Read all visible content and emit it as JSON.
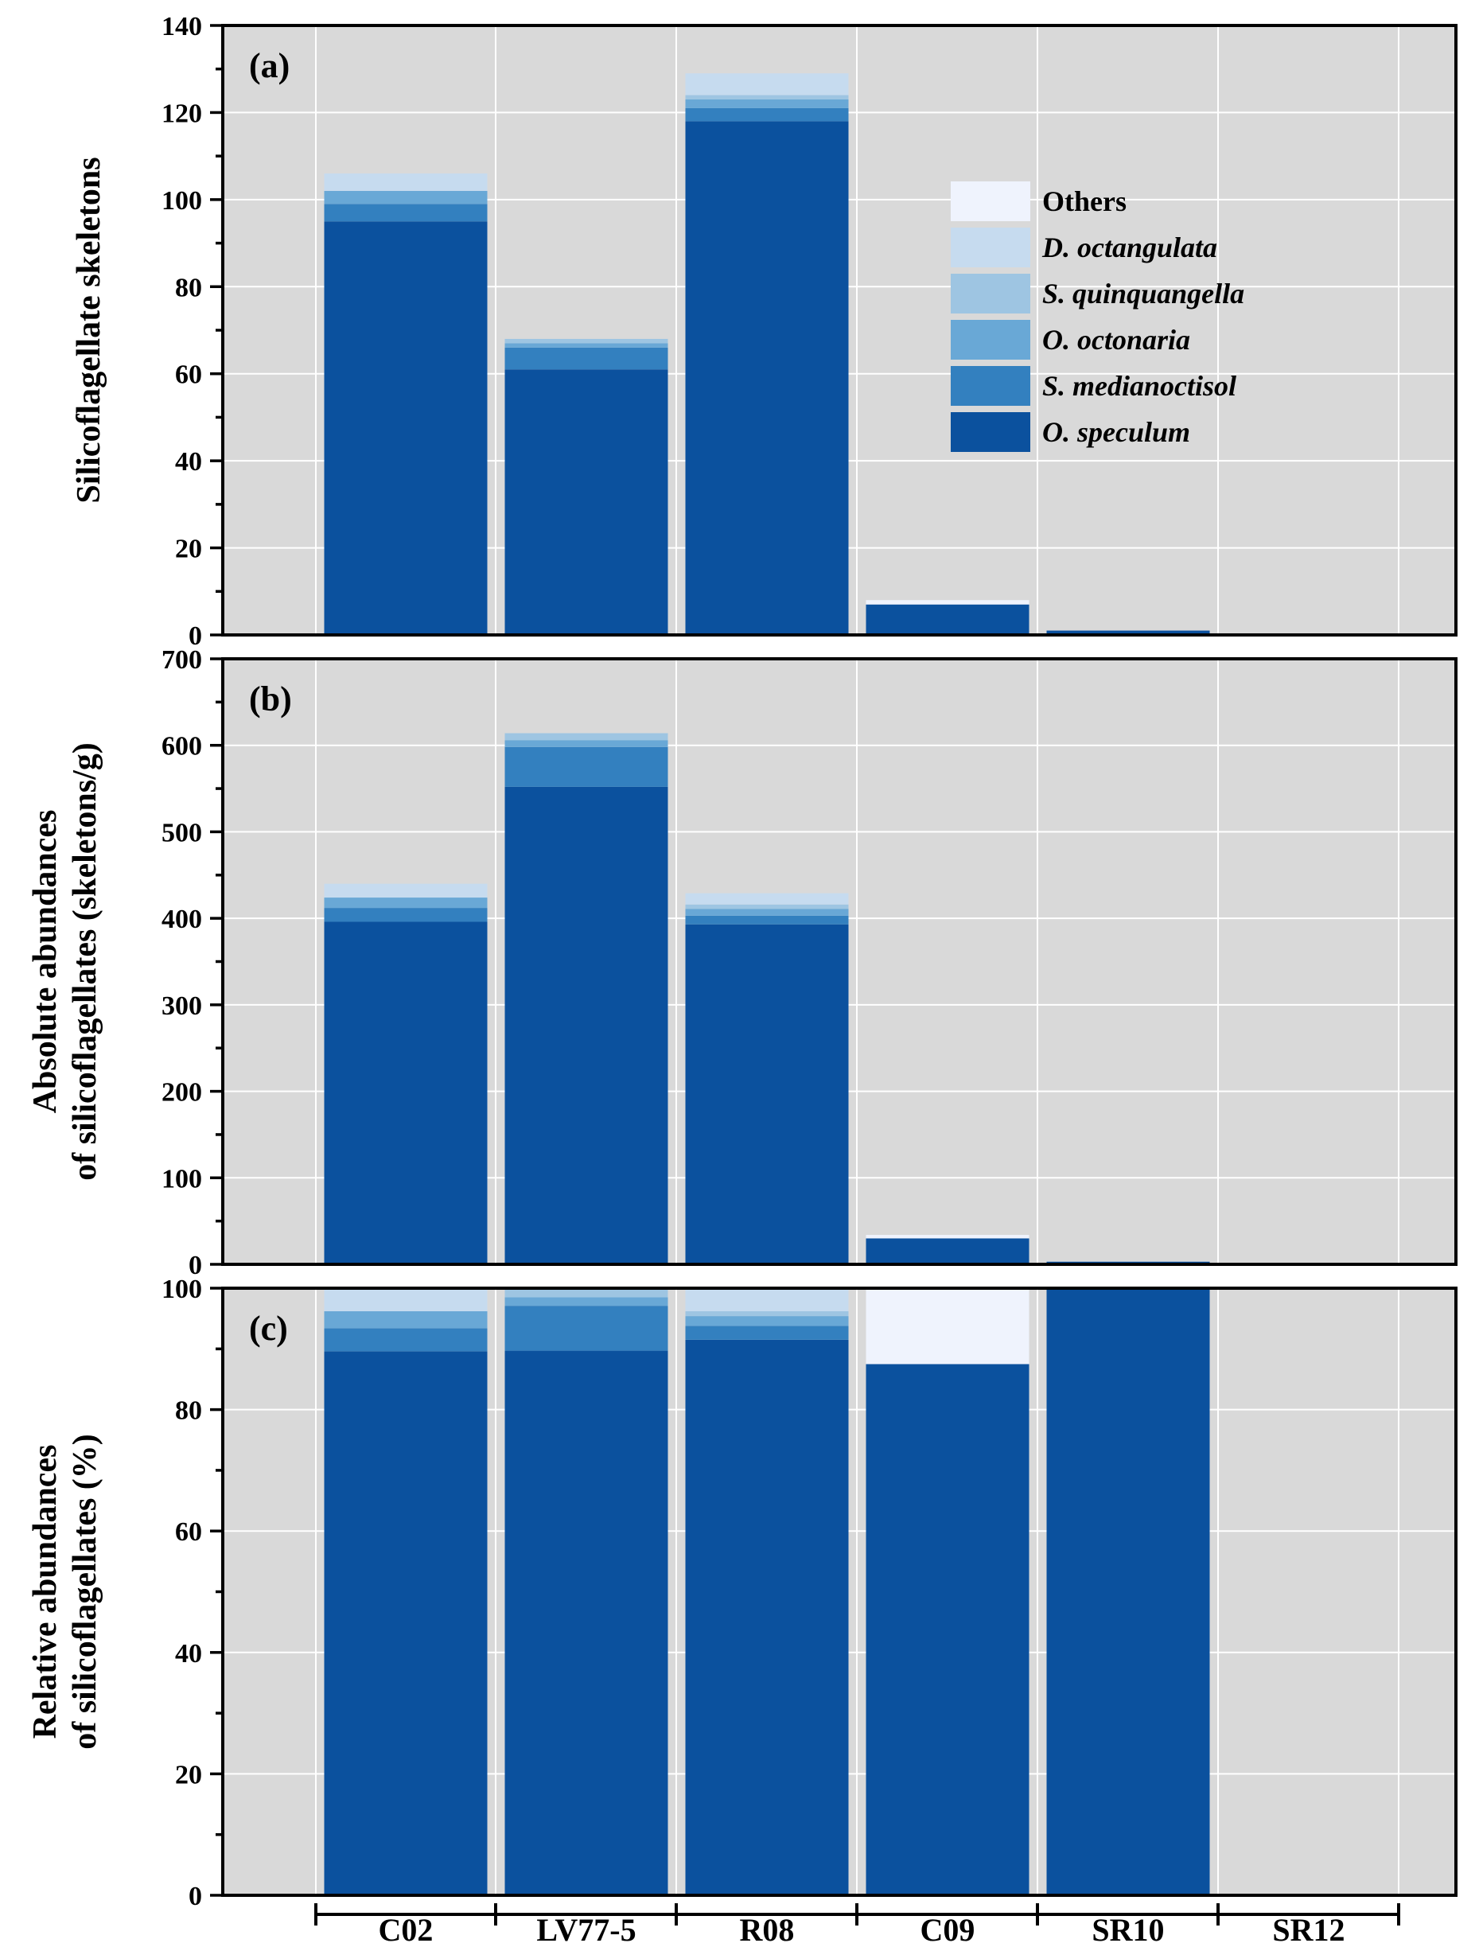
{
  "chart_data": {
    "type": "bar",
    "stacked": true,
    "categories": [
      "C02",
      "LV77-5",
      "R08",
      "C09",
      "SR10",
      "SR12"
    ],
    "series_styles": [
      {
        "name": "O. speculum",
        "color": "#0b519e",
        "italic": true
      },
      {
        "name": "S. medianoctisol",
        "color": "#3380bf",
        "italic": true
      },
      {
        "name": "O. octonaria",
        "color": "#69a8d6",
        "italic": true
      },
      {
        "name": "S. quinquangella",
        "color": "#9ec5e2",
        "italic": true
      },
      {
        "name": "D. octangulata",
        "color": "#c6dbef",
        "italic": true
      },
      {
        "name": "Others",
        "color": "#eff3fd",
        "italic": false
      }
    ],
    "legend": {
      "placement": "top-right-of-panel-a",
      "order": [
        "Others",
        "D. octangulata",
        "S. quinquangella",
        "O. octonaria",
        "S. medianoctisol",
        "O. speculum"
      ]
    },
    "background_color": "#d9d9d9",
    "grid": true,
    "panels": [
      {
        "label": "(a)",
        "ylabel": [
          "Silicoflagellate skeletons"
        ],
        "ylim": [
          0,
          140
        ],
        "yticks": [
          0,
          20,
          40,
          60,
          80,
          100,
          120,
          140
        ],
        "series": [
          {
            "name": "O. speculum",
            "values": [
              95,
              61,
              118,
              7,
              1,
              0
            ]
          },
          {
            "name": "S. medianoctisol",
            "values": [
              4,
              5,
              3,
              0,
              0,
              0
            ]
          },
          {
            "name": "O. octonaria",
            "values": [
              3,
              1,
              2,
              0,
              0,
              0
            ]
          },
          {
            "name": "S. quinquangella",
            "values": [
              0,
              1,
              1,
              0,
              0,
              0
            ]
          },
          {
            "name": "D. octangulata",
            "values": [
              4,
              0,
              5,
              0,
              0,
              0
            ]
          },
          {
            "name": "Others",
            "values": [
              0,
              0,
              0,
              1,
              0,
              0
            ]
          }
        ]
      },
      {
        "label": "(b)",
        "ylabel": [
          "Absolute abundances",
          "of silicoflagellates (skeletons/g)"
        ],
        "ylim": [
          0,
          700
        ],
        "yticks": [
          0,
          100,
          200,
          300,
          400,
          500,
          600,
          700
        ],
        "series": [
          {
            "name": "O. speculum",
            "values": [
              396,
              552,
              393,
              30,
              3,
              0
            ]
          },
          {
            "name": "S. medianoctisol",
            "values": [
              16,
              46,
              10,
              0,
              0,
              0
            ]
          },
          {
            "name": "O. octonaria",
            "values": [
              12,
              8,
              8,
              0,
              0,
              0
            ]
          },
          {
            "name": "S. quinquangella",
            "values": [
              0,
              8,
              5,
              0,
              0,
              0
            ]
          },
          {
            "name": "D. octangulata",
            "values": [
              16,
              0,
              13,
              0,
              0,
              0
            ]
          },
          {
            "name": "Others",
            "values": [
              0,
              0,
              0,
              4,
              0,
              0
            ]
          }
        ]
      },
      {
        "label": "(c)",
        "ylabel": [
          "Relative abundances",
          "of silicoflagellates (%)"
        ],
        "ylim": [
          0,
          100
        ],
        "yticks": [
          0,
          20,
          40,
          60,
          80,
          100
        ],
        "series": [
          {
            "name": "O. speculum",
            "values": [
              89.6,
              89.7,
              91.5,
              87.5,
              100,
              0
            ]
          },
          {
            "name": "S. medianoctisol",
            "values": [
              3.8,
              7.4,
              2.3,
              0,
              0,
              0
            ]
          },
          {
            "name": "O. octonaria",
            "values": [
              2.8,
              1.4,
              1.6,
              0,
              0,
              0
            ]
          },
          {
            "name": "S. quinquangella",
            "values": [
              0,
              1.5,
              0.8,
              0,
              0,
              0
            ]
          },
          {
            "name": "D. octangulata",
            "values": [
              3.8,
              0,
              3.8,
              0,
              0,
              0
            ]
          },
          {
            "name": "Others",
            "values": [
              0,
              0,
              0,
              12.5,
              0,
              0
            ]
          }
        ]
      }
    ]
  }
}
